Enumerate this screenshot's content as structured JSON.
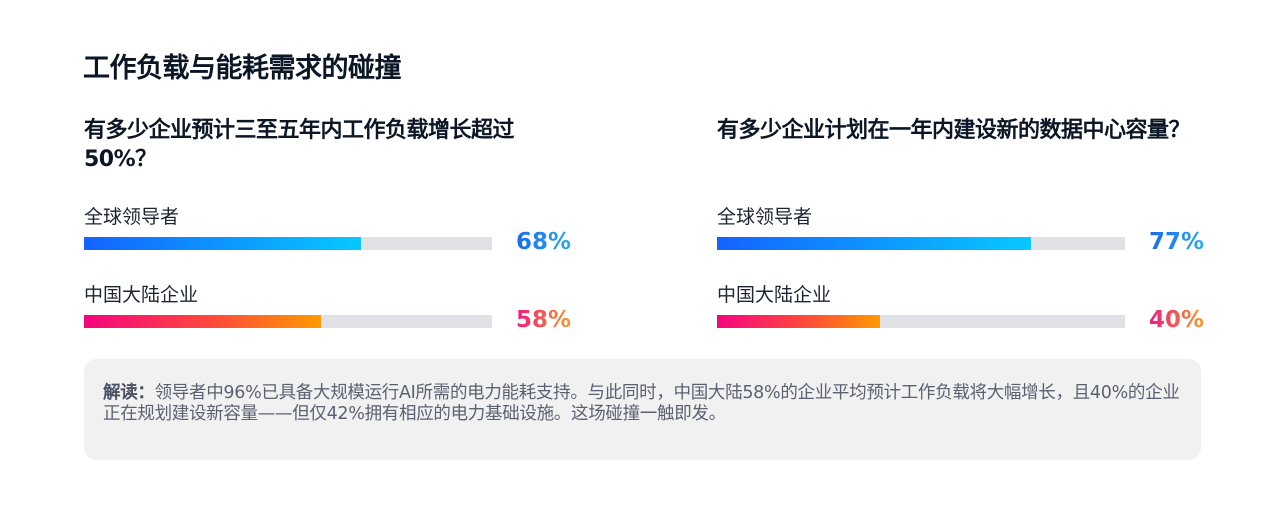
{
  "title": "工作负载与能耗需求的碰撞",
  "panels": [
    {
      "question": "有多少企业预计三至五年内工作负载增长超过50%？",
      "rows": [
        {
          "label": "全球领导者",
          "value": 68,
          "display": "68%",
          "color_start": "#1463ff",
          "color_end": "#07c8ff"
        },
        {
          "label": "中国大陆企业",
          "value": 58,
          "display": "58%",
          "color_start": "#f5057f",
          "color_end": "#ff9a00"
        }
      ]
    },
    {
      "question": "有多少企业计划在一年内建设新的数据中心容量？",
      "rows": [
        {
          "label": "全球领导者",
          "value": 77,
          "display": "77%",
          "color_start": "#1463ff",
          "color_end": "#07c8ff"
        },
        {
          "label": "中国大陆企业",
          "value": 40,
          "display": "40%",
          "color_start": "#f5057f",
          "color_end": "#ff9a00"
        }
      ]
    }
  ],
  "note": {
    "label": "解读：",
    "text": "领导者中96%已具备大规模运行AI所需的电力能耗支持。与此同时，中国大陆58%的企业平均预计工作负载将大幅增长，且40%的企业正在规划建设新容量——但仅42%拥有相应的电力基础设施。这场碰撞一触即发。"
  },
  "colors": {
    "track": "#e1e2e6",
    "note_bg": "#f1f1f2",
    "title": "#0b1626"
  },
  "chart_data": [
    {
      "type": "bar",
      "orientation": "horizontal",
      "title": "有多少企业预计三至五年内工作负载增长超过50%？",
      "categories": [
        "全球领导者",
        "中国大陆企业"
      ],
      "values": [
        68,
        58
      ],
      "unit": "%",
      "xlim": [
        0,
        100
      ],
      "grid": false,
      "legend": null
    },
    {
      "type": "bar",
      "orientation": "horizontal",
      "title": "有多少企业计划在一年内建设新的数据中心容量？",
      "categories": [
        "全球领导者",
        "中国大陆企业"
      ],
      "values": [
        77,
        40
      ],
      "unit": "%",
      "xlim": [
        0,
        100
      ],
      "grid": false,
      "legend": null
    }
  ]
}
